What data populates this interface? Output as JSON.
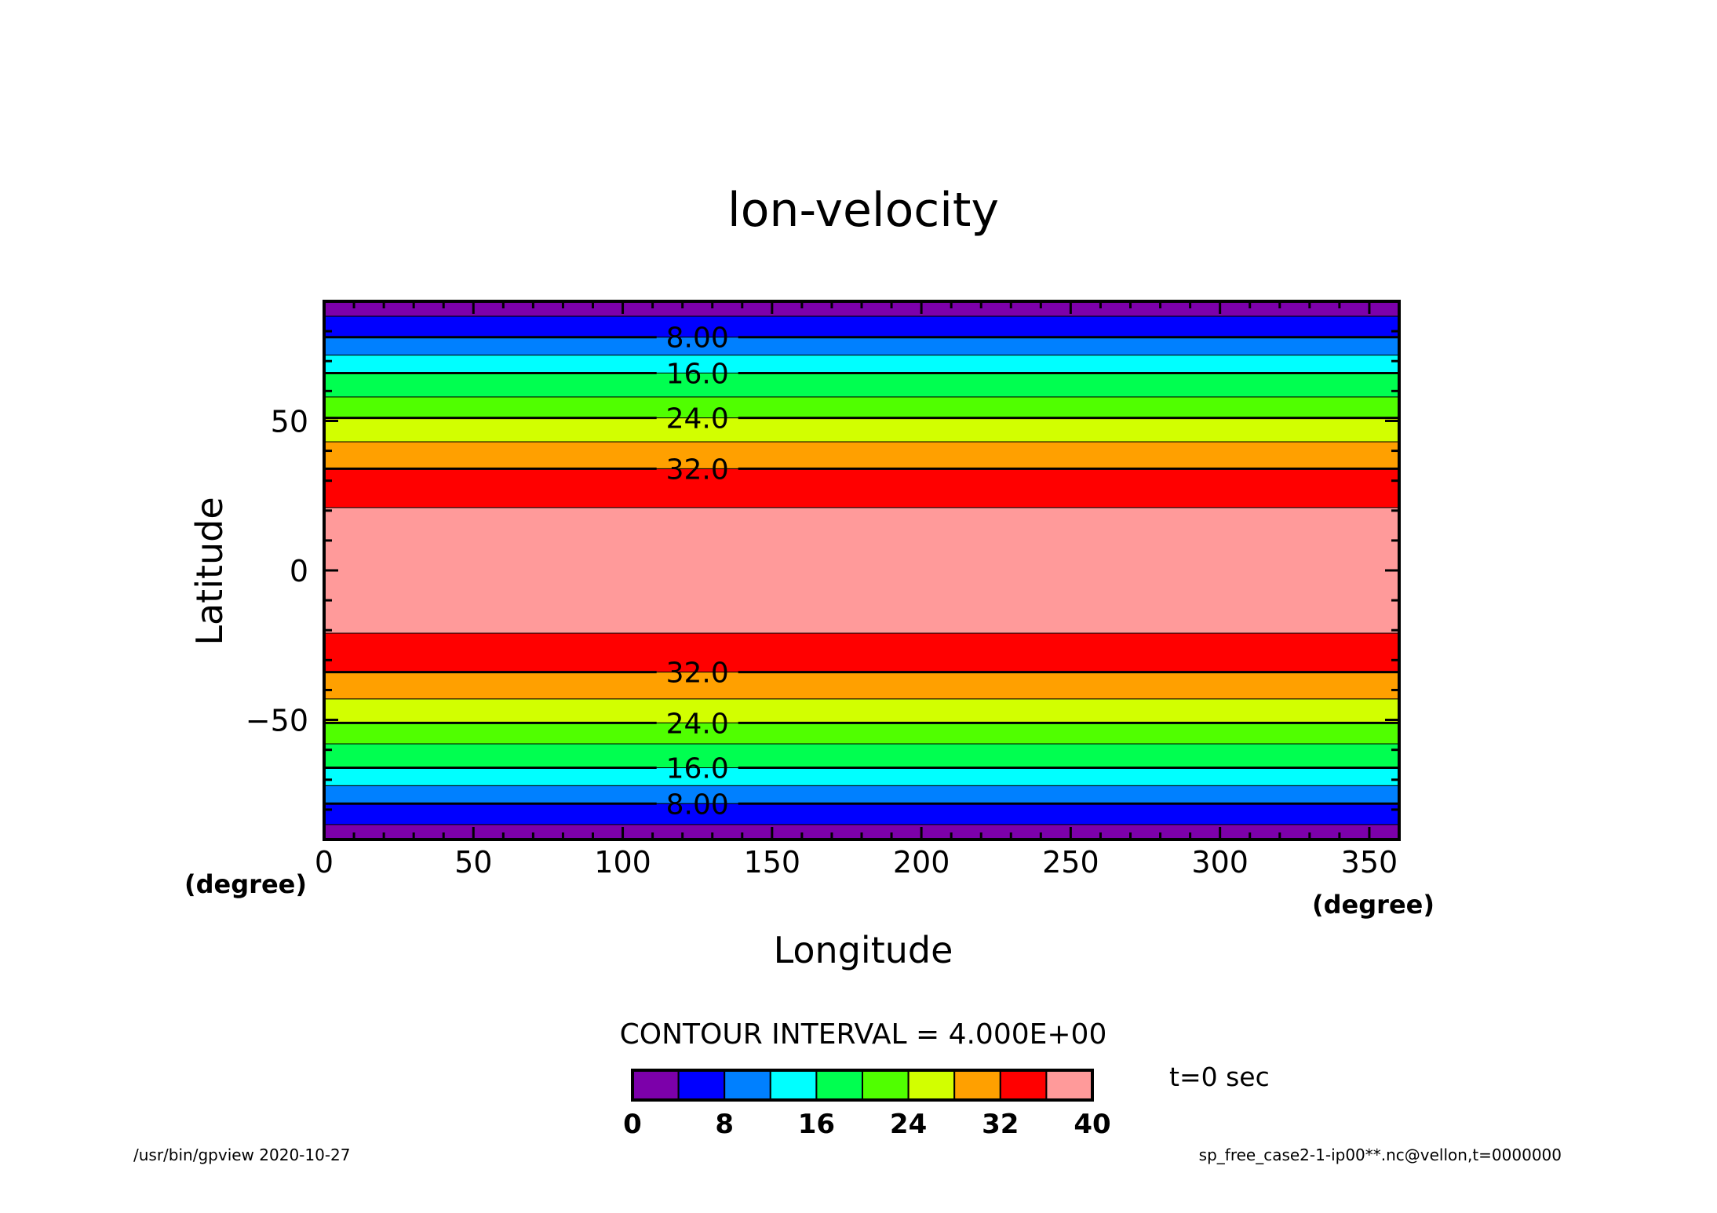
{
  "chart_data": {
    "type": "heatmap",
    "title": "lon-velocity",
    "xlabel": "Longitude",
    "ylabel": "Latitude",
    "x_unit": "(degree)",
    "y_unit": "(degree)",
    "xlim": [
      0,
      360
    ],
    "ylim": [
      -90,
      90
    ],
    "x_ticks": [
      0,
      50,
      100,
      150,
      200,
      250,
      300,
      350
    ],
    "y_ticks": [
      -50,
      0,
      50
    ],
    "field": "zonally uniform bands; value varies with latitude only",
    "bands": [
      {
        "lat_from": 85,
        "lat_to": 90,
        "bin": [
          0,
          4
        ]
      },
      {
        "lat_from": 78,
        "lat_to": 85,
        "bin": [
          4,
          8
        ]
      },
      {
        "lat_from": 72,
        "lat_to": 78,
        "bin": [
          8,
          12
        ]
      },
      {
        "lat_from": 66,
        "lat_to": 72,
        "bin": [
          12,
          16
        ]
      },
      {
        "lat_from": 58,
        "lat_to": 66,
        "bin": [
          16,
          20
        ]
      },
      {
        "lat_from": 51,
        "lat_to": 58,
        "bin": [
          20,
          24
        ]
      },
      {
        "lat_from": 43,
        "lat_to": 51,
        "bin": [
          24,
          28
        ]
      },
      {
        "lat_from": 34,
        "lat_to": 43,
        "bin": [
          28,
          32
        ]
      },
      {
        "lat_from": 21,
        "lat_to": 34,
        "bin": [
          32,
          36
        ]
      },
      {
        "lat_from": -21,
        "lat_to": 21,
        "bin": [
          36,
          40
        ]
      },
      {
        "lat_from": -34,
        "lat_to": -21,
        "bin": [
          32,
          36
        ]
      },
      {
        "lat_from": -43,
        "lat_to": -34,
        "bin": [
          28,
          32
        ]
      },
      {
        "lat_from": -51,
        "lat_to": -43,
        "bin": [
          24,
          28
        ]
      },
      {
        "lat_from": -58,
        "lat_to": -51,
        "bin": [
          20,
          24
        ]
      },
      {
        "lat_from": -66,
        "lat_to": -58,
        "bin": [
          16,
          20
        ]
      },
      {
        "lat_from": -72,
        "lat_to": -66,
        "bin": [
          12,
          16
        ]
      },
      {
        "lat_from": -78,
        "lat_to": -72,
        "bin": [
          8,
          12
        ]
      },
      {
        "lat_from": -85,
        "lat_to": -78,
        "bin": [
          4,
          8
        ]
      },
      {
        "lat_from": -90,
        "lat_to": -85,
        "bin": [
          0,
          4
        ]
      }
    ],
    "contour_lines": [
      {
        "lat": 78,
        "label": "8.00"
      },
      {
        "lat": 66,
        "label": "16.0"
      },
      {
        "lat": 51,
        "label": "24.0"
      },
      {
        "lat": 34,
        "label": "32.0"
      },
      {
        "lat": -34,
        "label": "32.0"
      },
      {
        "lat": -51,
        "label": "24.0"
      },
      {
        "lat": -66,
        "label": "16.0"
      },
      {
        "lat": -78,
        "label": "8.00"
      }
    ],
    "contour_label_lon": 125,
    "contour_interval_text": "CONTOUR INTERVAL = 4.000E+00",
    "colorbar": {
      "levels": [
        0,
        4,
        8,
        12,
        16,
        20,
        24,
        28,
        32,
        36,
        40
      ],
      "tick_labels": [
        "0",
        "8",
        "16",
        "24",
        "32",
        "40"
      ],
      "colors": [
        "#7c00aa",
        "#0000ff",
        "#0080ff",
        "#00ffff",
        "#00ff50",
        "#50ff00",
        "#d2ff00",
        "#ffa000",
        "#ff0000",
        "#ff9a9a"
      ]
    },
    "grid": false,
    "legend": "colorbar, bottom-center"
  },
  "annotations": {
    "time": "t=0 sec",
    "footer_left": "/usr/bin/gpview   2020-10-27",
    "footer_right": "sp_free_case2-1-ip00**.nc@vellon,t=0000000"
  }
}
